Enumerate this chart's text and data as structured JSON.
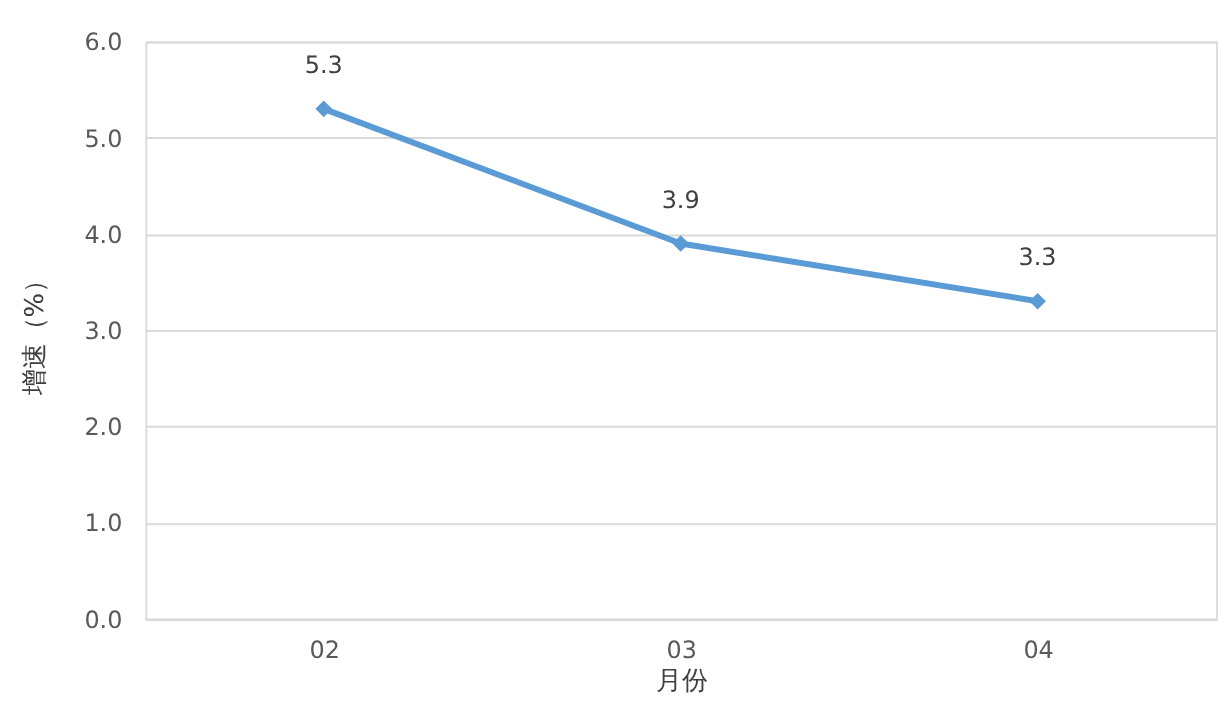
{
  "chart_data": {
    "type": "line",
    "xlabel": "月份",
    "ylabel": "增速（%）",
    "categories": [
      "02",
      "03",
      "04"
    ],
    "series": [
      {
        "color": "#5b9bd5",
        "values": [
          5.3,
          3.9,
          3.3
        ]
      }
    ],
    "ylim": [
      0,
      6
    ],
    "yticks": [
      {
        "value": 0,
        "label": "0.0"
      },
      {
        "value": 1,
        "label": "1.0"
      },
      {
        "value": 2,
        "label": "2.0"
      },
      {
        "value": 3,
        "label": "3.0"
      },
      {
        "value": 4,
        "label": "4.0"
      },
      {
        "value": 5,
        "label": "5.0"
      },
      {
        "value": 6,
        "label": "6.0"
      }
    ],
    "grid": "y",
    "marker": "diamond",
    "line_style": "solid",
    "data_labels": true
  }
}
